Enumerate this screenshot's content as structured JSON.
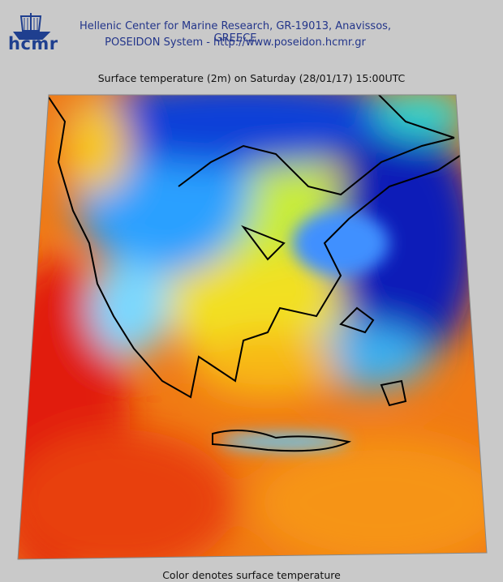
{
  "header": {
    "logo": "hcmr",
    "line1": "Hellenic Center for Marine Research, GR-19013, Anavissos, GREECE",
    "line2": "POSEIDON System - http://www.poseidon.hcmr.gr"
  },
  "map": {
    "title": "Surface temperature (2m) on Saturday (28/01/17) 15:00UTC",
    "caption": "Color denotes surface temperature"
  }
}
